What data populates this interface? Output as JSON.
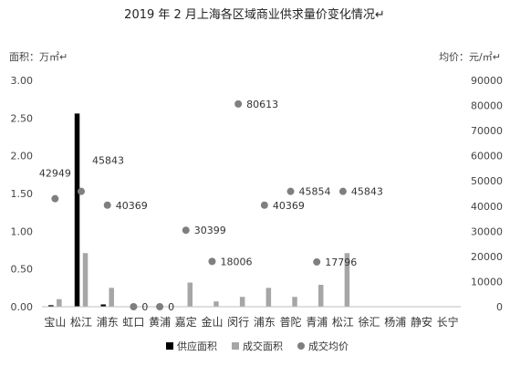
{
  "chart_data": {
    "type": "bar",
    "title": "2019 年 2 月上海各区域商业供求量价变化情况↵",
    "ylabel_left": "面积：万㎡↵",
    "ylabel_right": "均价：元/㎡↵",
    "categories": [
      "宝山",
      "松江",
      "浦东",
      "虹口",
      "黄浦",
      "嘉定",
      "金山",
      "闵行",
      "浦东",
      "普陀",
      "青浦",
      "松江",
      "徐汇",
      "杨浦",
      "静安",
      "长宁"
    ],
    "left_axis": {
      "min": 0,
      "max": 3,
      "ticks": [
        "0.00",
        "0.50",
        "1.00",
        "1.50",
        "2.00",
        "2.50",
        "3.00"
      ]
    },
    "right_axis": {
      "min": 0,
      "max": 90000,
      "ticks": [
        "0",
        "10000",
        "20000",
        "30000",
        "40000",
        "50000",
        "60000",
        "70000",
        "80000",
        "90000"
      ]
    },
    "series": [
      {
        "name": "供应面积",
        "kind": "bar",
        "axis": "left",
        "color": "#000000",
        "values": [
          0.02,
          2.56,
          0.03,
          0,
          0,
          0,
          0,
          0,
          0,
          0,
          0,
          0,
          0,
          0,
          0,
          0
        ]
      },
      {
        "name": "成交面积",
        "kind": "bar",
        "axis": "left",
        "color": "#a6a6a6",
        "values": [
          0.1,
          0.71,
          0.25,
          0,
          0,
          0.32,
          0.07,
          0.13,
          0.25,
          0.13,
          0.29,
          0.71,
          0,
          0,
          0,
          0
        ]
      },
      {
        "name": "成交均价",
        "kind": "scatter",
        "axis": "right",
        "color": "#7f7f7f",
        "values": [
          42949,
          45843,
          40369,
          0,
          0,
          30399,
          18006,
          80613,
          40369,
          45854,
          17796,
          45843,
          null,
          null,
          null,
          null
        ],
        "labels": [
          "42949",
          "45843",
          "40369",
          "0",
          "0",
          "30399",
          "18006",
          "80613",
          "40369",
          "45854",
          "17796",
          "45843",
          "",
          "",
          "",
          ""
        ]
      }
    ],
    "legend": {
      "position": "bottom"
    },
    "grid": false
  }
}
